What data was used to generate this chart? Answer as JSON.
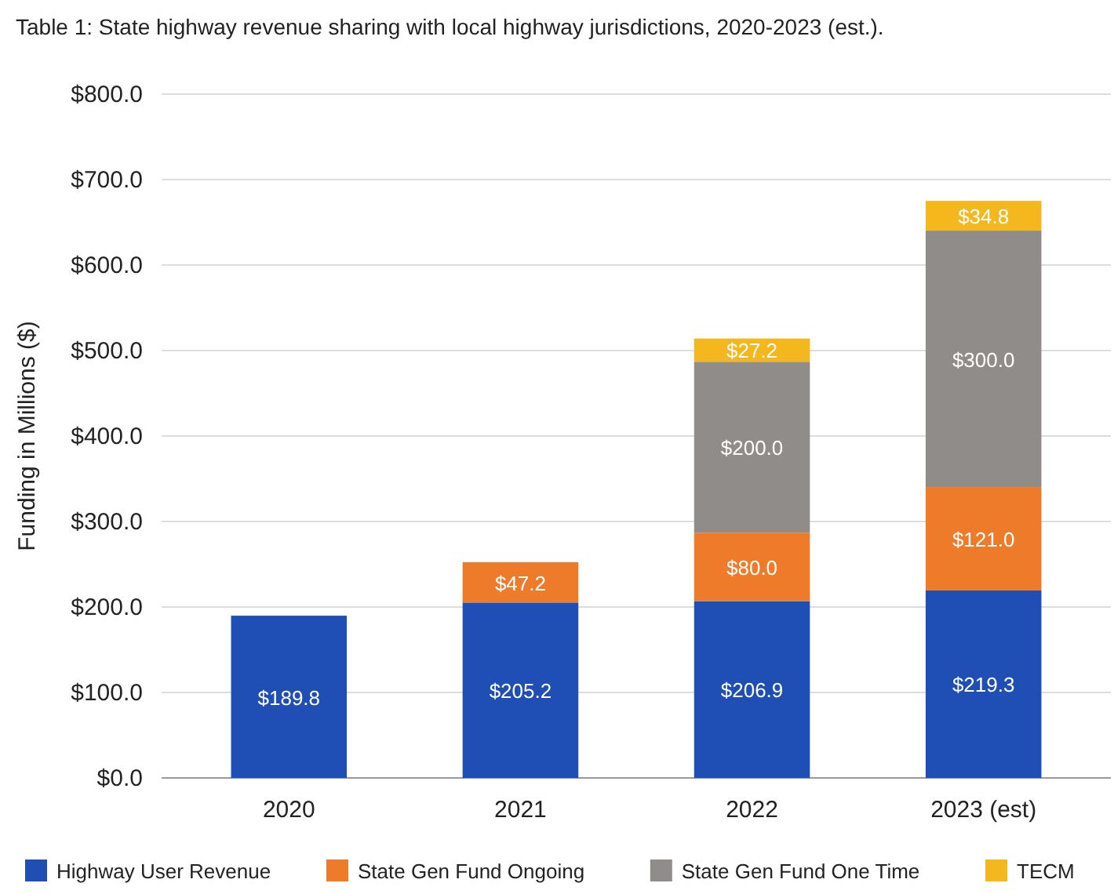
{
  "chart_data": {
    "type": "bar",
    "title": "Table 1: State highway revenue sharing with local highway jurisdictions, 2020-2023 (est.).",
    "ylabel": "Funding in Millions ($)",
    "categories": [
      "2020",
      "2021",
      "2022",
      "2023 (est)"
    ],
    "stacked": true,
    "ylim": [
      0,
      800
    ],
    "yticks": [
      {
        "value": 0,
        "label": "$0.0"
      },
      {
        "value": 100,
        "label": "$100.0"
      },
      {
        "value": 200,
        "label": "$200.0"
      },
      {
        "value": 300,
        "label": "$300.0"
      },
      {
        "value": 400,
        "label": "$400.0"
      },
      {
        "value": 500,
        "label": "$500.0"
      },
      {
        "value": 600,
        "label": "$600.0"
      },
      {
        "value": 700,
        "label": "$700.0"
      },
      {
        "value": 800,
        "label": "$800.0"
      }
    ],
    "grid": "y",
    "legend": "bottom",
    "series": [
      {
        "name": "Highway User Revenue",
        "color": "#1f4fb5",
        "values": [
          189.8,
          205.2,
          206.9,
          219.3
        ],
        "value_labels": [
          "$189.8",
          "$205.2",
          "$206.9",
          "$219.3"
        ]
      },
      {
        "name": "State Gen Fund Ongoing",
        "color": "#ee7b2a",
        "values": [
          null,
          47.2,
          80.0,
          121.0
        ],
        "value_labels": [
          null,
          "$47.2",
          "$80.0",
          "$121.0"
        ]
      },
      {
        "name": "State Gen Fund One Time",
        "color": "#8f8c89",
        "values": [
          null,
          null,
          200.0,
          300.0
        ],
        "value_labels": [
          null,
          null,
          "$200.0",
          "$300.0"
        ]
      },
      {
        "name": "TECM",
        "color": "#f4b71e",
        "values": [
          null,
          null,
          27.2,
          34.8
        ],
        "value_labels": [
          null,
          null,
          "$27.2",
          "$34.8"
        ]
      }
    ]
  }
}
